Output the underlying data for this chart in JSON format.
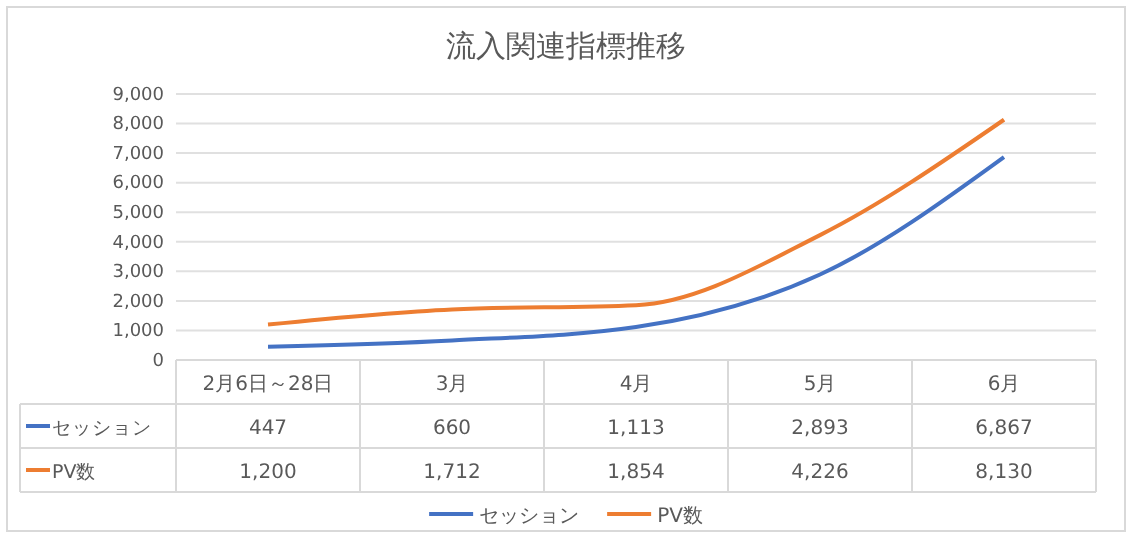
{
  "chart_data": {
    "type": "line",
    "title": "流入関連指標推移",
    "categories": [
      "2月6日～28日",
      "3月",
      "4月",
      "5月",
      "6月"
    ],
    "series": [
      {
        "name": "セッション",
        "color": "#4472c4",
        "values": [
          447,
          660,
          1113,
          2893,
          6867
        ],
        "value_labels": [
          "447",
          "660",
          "1,113",
          "2,893",
          "6,867"
        ]
      },
      {
        "name": "PV数",
        "color": "#ed7d31",
        "values": [
          1200,
          1712,
          1854,
          4226,
          8130
        ],
        "value_labels": [
          "1,200",
          "1,712",
          "1,854",
          "4,226",
          "8,130"
        ]
      }
    ],
    "ylim": [
      0,
      9000
    ],
    "yticks": [
      {
        "value": 0,
        "label": "0"
      },
      {
        "value": 1000,
        "label": "1,000"
      },
      {
        "value": 2000,
        "label": "2,000"
      },
      {
        "value": 3000,
        "label": "3,000"
      },
      {
        "value": 4000,
        "label": "4,000"
      },
      {
        "value": 5000,
        "label": "5,000"
      },
      {
        "value": 6000,
        "label": "6,000"
      },
      {
        "value": 7000,
        "label": "7,000"
      },
      {
        "value": 8000,
        "label": "8,000"
      },
      {
        "value": 9000,
        "label": "9,000"
      }
    ],
    "grid": "y",
    "legend": "bottom",
    "marker": "none",
    "line_style": "solid"
  }
}
